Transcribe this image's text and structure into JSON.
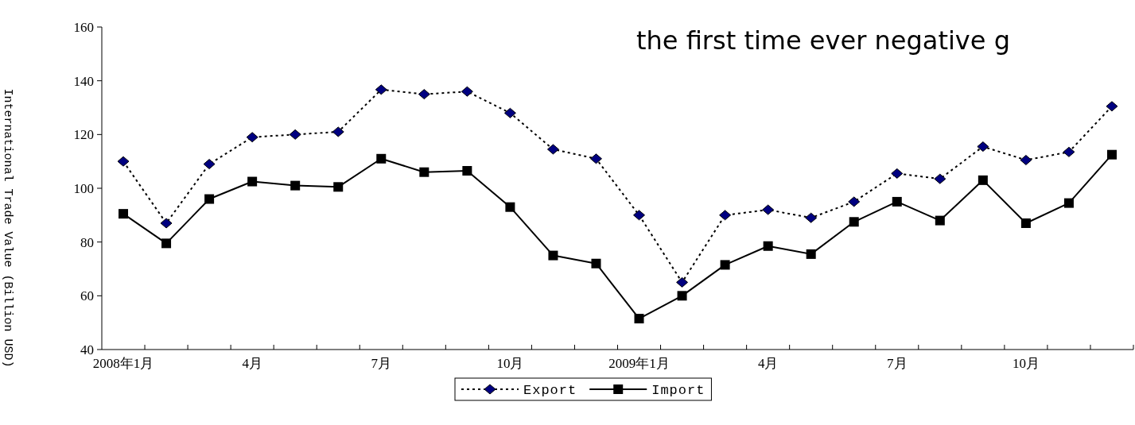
{
  "chart_data": {
    "type": "line",
    "ylabel": "International Trade Value (Billion USD)",
    "annotations": [
      "the first time ever negative g"
    ],
    "categories": [
      "2008年1月",
      null,
      null,
      "4月",
      null,
      null,
      "7月",
      null,
      null,
      "10月",
      null,
      null,
      "2009年1月",
      null,
      null,
      "4月",
      null,
      null,
      "7月",
      null,
      null,
      "10月",
      null,
      null
    ],
    "ylim": [
      40,
      160
    ],
    "yticks": [
      40,
      60,
      80,
      100,
      120,
      140,
      160
    ],
    "grid": false,
    "legend": "bottom",
    "series": [
      {
        "name": "Export",
        "color": "#000080",
        "marker": "diamond",
        "line_style": "dotted",
        "values": [
          110,
          87,
          109,
          119,
          120,
          121,
          136.7,
          135,
          136,
          128,
          114.5,
          111,
          90,
          65,
          90,
          92,
          89,
          95,
          105.5,
          103.5,
          115.5,
          110.5,
          113.5,
          130.5
        ]
      },
      {
        "name": "Import",
        "color": "#000000",
        "marker": "square",
        "line_style": "solid",
        "values": [
          90.5,
          79.5,
          96,
          102.5,
          101,
          100.5,
          111,
          106,
          106.5,
          93,
          75,
          72,
          51.5,
          60,
          71.5,
          78.5,
          75.5,
          87.5,
          95,
          88,
          103,
          87,
          94.5,
          112.5
        ]
      }
    ]
  }
}
